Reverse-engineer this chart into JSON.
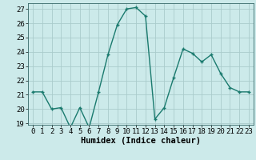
{
  "x": [
    0,
    1,
    2,
    3,
    4,
    5,
    6,
    7,
    8,
    9,
    10,
    11,
    12,
    13,
    14,
    15,
    16,
    17,
    18,
    19,
    20,
    21,
    22,
    23
  ],
  "y": [
    21.2,
    21.2,
    20.0,
    20.1,
    18.7,
    20.1,
    18.7,
    21.2,
    23.8,
    25.9,
    27.0,
    27.1,
    26.5,
    19.3,
    20.1,
    22.2,
    24.2,
    23.9,
    23.3,
    23.8,
    22.5,
    21.5,
    21.2,
    21.2
  ],
  "line_color": "#1a7a6e",
  "marker": "+",
  "marker_size": 3,
  "bg_color": "#cceaea",
  "grid_color": "#aacccc",
  "xlabel": "Humidex (Indice chaleur)",
  "ylim": [
    18.9,
    27.4
  ],
  "xlim": [
    -0.5,
    23.5
  ],
  "yticks": [
    19,
    20,
    21,
    22,
    23,
    24,
    25,
    26,
    27
  ],
  "xticks": [
    0,
    1,
    2,
    3,
    4,
    5,
    6,
    7,
    8,
    9,
    10,
    11,
    12,
    13,
    14,
    15,
    16,
    17,
    18,
    19,
    20,
    21,
    22,
    23
  ],
  "tick_label_size": 6.5,
  "xlabel_size": 7.5,
  "line_width": 1.0
}
